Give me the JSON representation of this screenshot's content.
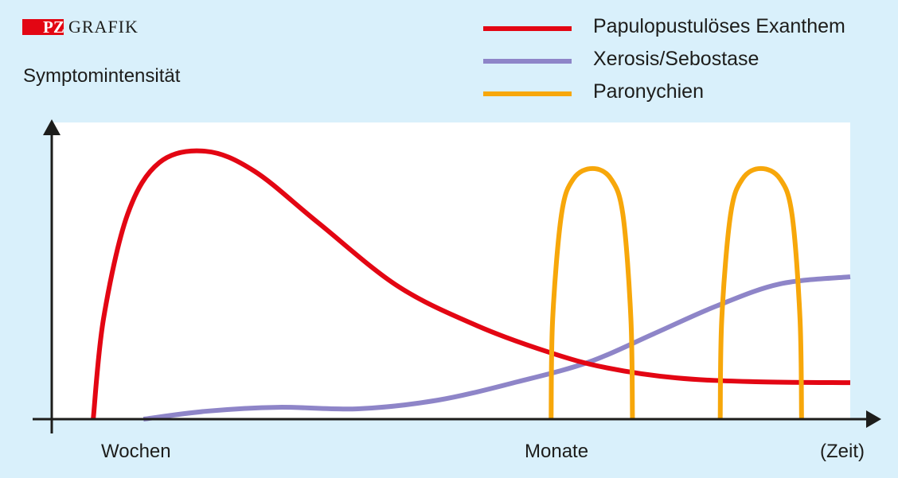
{
  "logo": {
    "badge": "PZ",
    "text": "GRAFIK"
  },
  "chart_data": {
    "type": "line",
    "title": "",
    "ylabel": "Symptomintensität",
    "xlabel": "(Zeit)",
    "x_tick_labels": [
      "Wochen",
      "Monate"
    ],
    "xlim": [
      0,
      100
    ],
    "ylim": [
      0,
      100
    ],
    "grid": false,
    "legend_position": "top-right",
    "series": [
      {
        "name": "Papulopustulöses Exanthem",
        "color": "#e30613",
        "points": [
          [
            5.1,
            0
          ],
          [
            6.4,
            34
          ],
          [
            9.4,
            69
          ],
          [
            13.4,
            86.5
          ],
          [
            19.2,
            90.3
          ],
          [
            25.3,
            83.6
          ],
          [
            33.3,
            66.2
          ],
          [
            43.3,
            44.8
          ],
          [
            53.3,
            31.4
          ],
          [
            62.3,
            22.5
          ],
          [
            69.3,
            17.4
          ],
          [
            78.2,
            13.9
          ],
          [
            88.2,
            12.6
          ],
          [
            100,
            12.3
          ]
        ]
      },
      {
        "name": "Xerosis/Sebostase",
        "color": "#8e85c8",
        "points": [
          [
            11.4,
            0
          ],
          [
            19.4,
            2.7
          ],
          [
            28.3,
            4.0
          ],
          [
            38.3,
            3.5
          ],
          [
            48.3,
            6.4
          ],
          [
            58.3,
            12.6
          ],
          [
            67.3,
            19.3
          ],
          [
            75.3,
            28.7
          ],
          [
            83.2,
            38.1
          ],
          [
            91.2,
            45.6
          ],
          [
            100,
            48
          ]
        ]
      },
      {
        "name": "Paronychien",
        "color": "#f7a70a",
        "segments": [
          [
            [
              62.5,
              0
            ],
            [
              62.7,
              34
            ],
            [
              63.8,
              69
            ],
            [
              65.3,
              81
            ],
            [
              67.7,
              84.5
            ],
            [
              70.0,
              81
            ],
            [
              71.5,
              69
            ],
            [
              72.5,
              34
            ],
            [
              72.7,
              0
            ]
          ],
          [
            [
              83.7,
              0
            ],
            [
              83.9,
              34
            ],
            [
              85.0,
              69
            ],
            [
              86.5,
              81
            ],
            [
              88.8,
              84.5
            ],
            [
              91.2,
              81
            ],
            [
              92.7,
              69
            ],
            [
              93.7,
              34
            ],
            [
              93.9,
              0
            ]
          ]
        ]
      }
    ]
  }
}
